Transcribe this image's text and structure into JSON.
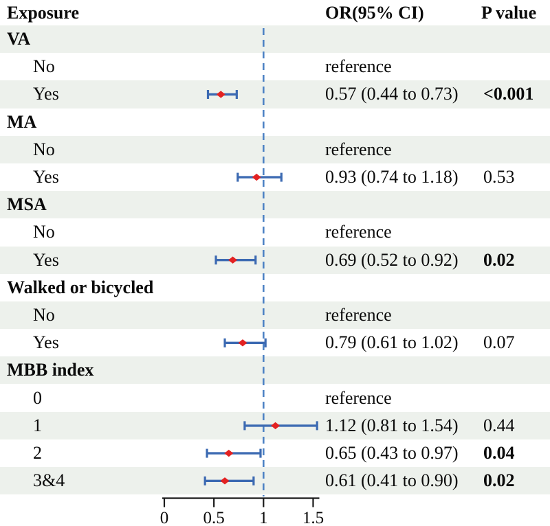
{
  "chart_data": {
    "type": "forest",
    "columns": [
      "Exposure",
      "OR(95% CI)",
      "P value"
    ],
    "x_axis": {
      "tick_labels": [
        "0",
        "0.5",
        "1",
        "1.5"
      ],
      "tick_values": [
        0,
        0.5,
        1,
        1.5
      ],
      "range": [
        0,
        1.56
      ],
      "reference_line": 1
    },
    "colors": {
      "ci_bar": "#3c6ab2",
      "point_marker": "#e32222",
      "reference_line": "#4d82c4",
      "row_shade": "#edf1ec",
      "axis": "#1a1a1a",
      "text": "#0b0b0b"
    },
    "rows": [
      {
        "label": "VA",
        "kind": "section"
      },
      {
        "label": "No",
        "kind": "item",
        "or_text": "reference"
      },
      {
        "label": "Yes",
        "kind": "item",
        "or": 0.57,
        "ci_low": 0.44,
        "ci_high": 0.73,
        "or_text": "0.57 (0.44 to 0.73)",
        "p": "<0.001",
        "p_bold": true
      },
      {
        "label": "MA",
        "kind": "section"
      },
      {
        "label": "No",
        "kind": "item",
        "or_text": "reference"
      },
      {
        "label": "Yes",
        "kind": "item",
        "or": 0.93,
        "ci_low": 0.74,
        "ci_high": 1.18,
        "or_text": "0.93 (0.74 to 1.18)",
        "p": "0.53",
        "p_bold": false
      },
      {
        "label": "MSA",
        "kind": "section"
      },
      {
        "label": "No",
        "kind": "item",
        "or_text": "reference"
      },
      {
        "label": "Yes",
        "kind": "item",
        "or": 0.69,
        "ci_low": 0.52,
        "ci_high": 0.92,
        "or_text": "0.69 (0.52 to 0.92)",
        "p": "0.02",
        "p_bold": true
      },
      {
        "label": "Walked or bicycled",
        "kind": "section"
      },
      {
        "label": "No",
        "kind": "item",
        "or_text": "reference"
      },
      {
        "label": "Yes",
        "kind": "item",
        "or": 0.79,
        "ci_low": 0.61,
        "ci_high": 1.02,
        "or_text": "0.79 (0.61 to 1.02)",
        "p": "0.07",
        "p_bold": false
      },
      {
        "label": "MBB index",
        "kind": "section"
      },
      {
        "label": "0",
        "kind": "item",
        "or_text": "reference"
      },
      {
        "label": "1",
        "kind": "item",
        "or": 1.12,
        "ci_low": 0.81,
        "ci_high": 1.54,
        "or_text": "1.12 (0.81 to 1.54)",
        "p": "0.44",
        "p_bold": false
      },
      {
        "label": "2",
        "kind": "item",
        "or": 0.65,
        "ci_low": 0.43,
        "ci_high": 0.97,
        "or_text": "0.65 (0.43 to 0.97)",
        "p": "0.04",
        "p_bold": true
      },
      {
        "label": "3&4",
        "kind": "item",
        "or": 0.61,
        "ci_low": 0.41,
        "ci_high": 0.9,
        "or_text": "0.61 (0.41 to 0.90)",
        "p": "0.02",
        "p_bold": true
      }
    ]
  }
}
